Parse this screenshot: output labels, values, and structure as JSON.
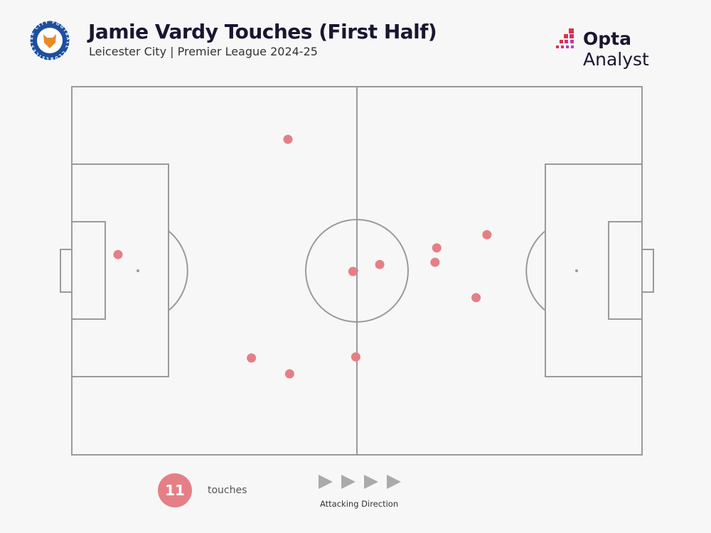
{
  "header": {
    "title": "Jamie Vardy Touches (First Half)",
    "subtitle": "Leicester City | Premier League 2024-25",
    "crest_text": "LEICESTER CITY FOOTBALL CLUB",
    "brand": "Opta Analyst",
    "brand_bold": "Opta",
    "brand_light": " Analyst"
  },
  "legend": {
    "count": "11",
    "count_label": "touches",
    "direction_label": "Attacking Direction"
  },
  "colors": {
    "touch": "#e57f86",
    "pitch_line": "#9a9a9a",
    "background": "#f7f7f7",
    "title": "#1a1530"
  },
  "chart_data": {
    "type": "scatter",
    "title": "Jamie Vardy Touches (First Half)",
    "coordinate_system": "Opta pitch 0-100, attacking left to right",
    "xlim": [
      0,
      100
    ],
    "ylim": [
      0,
      100
    ],
    "points": [
      {
        "x": 37.9,
        "y": 85.7
      },
      {
        "x": 8.1,
        "y": 54.4
      },
      {
        "x": 49.3,
        "y": 49.8
      },
      {
        "x": 54.0,
        "y": 51.7
      },
      {
        "x": 64.0,
        "y": 56.2
      },
      {
        "x": 63.7,
        "y": 52.3
      },
      {
        "x": 72.8,
        "y": 59.8
      },
      {
        "x": 70.9,
        "y": 42.7
      },
      {
        "x": 31.5,
        "y": 26.3
      },
      {
        "x": 38.2,
        "y": 22.0
      },
      {
        "x": 49.8,
        "y": 26.6
      }
    ]
  }
}
